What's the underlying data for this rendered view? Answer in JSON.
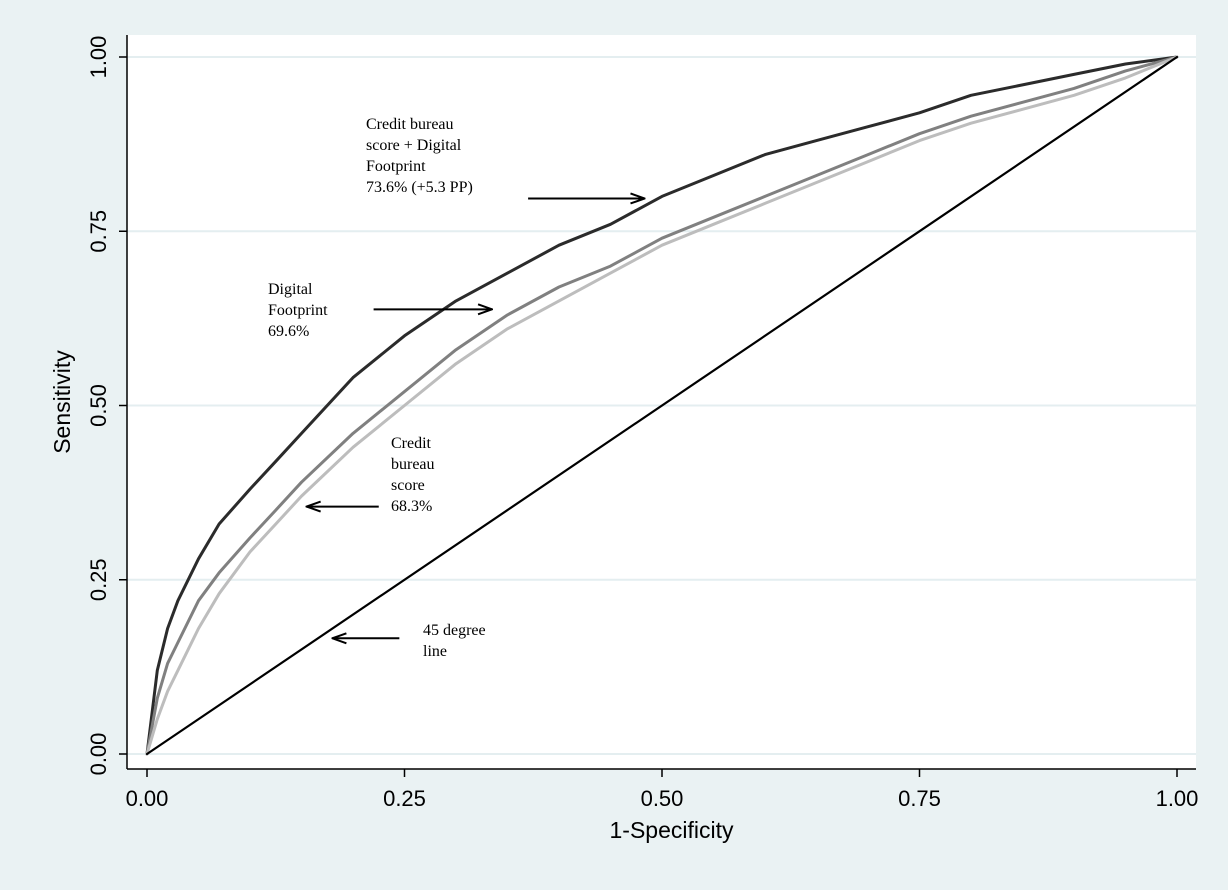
{
  "chart_data": {
    "type": "line",
    "title": "",
    "xlabel": "1-Specificity",
    "ylabel": "Sensitivity",
    "xlim": [
      0,
      1
    ],
    "ylim": [
      0,
      1
    ],
    "x_ticks": [
      "0.00",
      "0.25",
      "0.50",
      "0.75",
      "1.00"
    ],
    "y_ticks": [
      "0.00",
      "0.25",
      "0.50",
      "0.75",
      "1.00"
    ],
    "grid": "horizontal",
    "legend": "none",
    "series": [
      {
        "color": "#2b2b2b",
        "style": "solid",
        "x": [
          0,
          0.01,
          0.02,
          0.03,
          0.05,
          0.07,
          0.1,
          0.125,
          0.15,
          0.2,
          0.25,
          0.3,
          0.35,
          0.4,
          0.45,
          0.5,
          0.55,
          0.6,
          0.65,
          0.7,
          0.75,
          0.8,
          0.85,
          0.9,
          0.95,
          1
        ],
        "y": [
          0,
          0.12,
          0.18,
          0.22,
          0.28,
          0.33,
          0.38,
          0.42,
          0.46,
          0.54,
          0.6,
          0.65,
          0.69,
          0.73,
          0.76,
          0.8,
          0.83,
          0.86,
          0.88,
          0.9,
          0.92,
          0.945,
          0.96,
          0.975,
          0.99,
          1
        ]
      },
      {
        "color": "#808080",
        "style": "solid",
        "x": [
          0,
          0.01,
          0.02,
          0.03,
          0.05,
          0.07,
          0.1,
          0.125,
          0.15,
          0.2,
          0.25,
          0.3,
          0.35,
          0.4,
          0.45,
          0.5,
          0.55,
          0.6,
          0.65,
          0.7,
          0.75,
          0.8,
          0.85,
          0.9,
          0.95,
          1
        ],
        "y": [
          0,
          0.08,
          0.13,
          0.16,
          0.22,
          0.26,
          0.31,
          0.35,
          0.39,
          0.46,
          0.52,
          0.58,
          0.63,
          0.67,
          0.7,
          0.74,
          0.77,
          0.8,
          0.83,
          0.86,
          0.89,
          0.915,
          0.935,
          0.955,
          0.98,
          1
        ]
      },
      {
        "color": "#bdbdbd",
        "style": "solid",
        "x": [
          0,
          0.01,
          0.02,
          0.03,
          0.05,
          0.07,
          0.1,
          0.125,
          0.15,
          0.2,
          0.25,
          0.3,
          0.35,
          0.4,
          0.45,
          0.5,
          0.55,
          0.6,
          0.65,
          0.7,
          0.75,
          0.8,
          0.85,
          0.9,
          0.95,
          1
        ],
        "y": [
          0,
          0.05,
          0.09,
          0.12,
          0.18,
          0.23,
          0.29,
          0.33,
          0.37,
          0.44,
          0.5,
          0.56,
          0.61,
          0.65,
          0.69,
          0.73,
          0.76,
          0.79,
          0.82,
          0.85,
          0.88,
          0.905,
          0.925,
          0.945,
          0.97,
          1
        ]
      },
      {
        "color": "#000000",
        "style": "solid",
        "x": [
          0,
          1
        ],
        "y": [
          0,
          1
        ]
      }
    ],
    "annotations": [
      {
        "lines": [
          "Credit bureau",
          "score + Digital",
          "Footprint",
          "73.6% (+5.3 PP)"
        ],
        "arrow_from": [
          0.37,
          0.797
        ],
        "arrow_to": [
          0.483,
          0.797
        ]
      },
      {
        "lines": [
          "Digital",
          "Footprint",
          "69.6%"
        ],
        "arrow_from": [
          0.22,
          0.638
        ],
        "arrow_to": [
          0.335,
          0.638
        ]
      },
      {
        "lines": [
          "Credit",
          "bureau",
          "score",
          "68.3%"
        ],
        "arrow_from": [
          0.225,
          0.355
        ],
        "arrow_to": [
          0.155,
          0.355
        ]
      },
      {
        "lines": [
          "45 degree",
          "line"
        ],
        "arrow_from": [
          0.245,
          0.166
        ],
        "arrow_to": [
          0.18,
          0.166
        ]
      }
    ]
  }
}
